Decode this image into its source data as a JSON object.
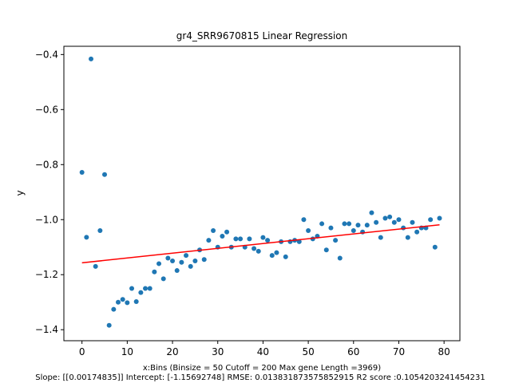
{
  "chart_data": {
    "type": "scatter",
    "title": "gr4_SRR9670815 Linear Regression",
    "xlabel": "x:Bins  (Binsize = 50 Cutoff = 200 Max gene Length =3969)",
    "ylabel": "y",
    "footer": "Slope: [[0.00174835]] Intercept: [-1.15692748] RMSE: 0.013831873575852915 R2 score :0.1054203241454231",
    "xlim": [
      -4,
      83.5
    ],
    "ylim": [
      -1.44,
      -0.37
    ],
    "xticks": [
      0,
      10,
      20,
      30,
      40,
      50,
      60,
      70,
      80
    ],
    "yticks": [
      -1.4,
      -1.2,
      -1.0,
      -0.8,
      -0.6,
      -0.4
    ],
    "ytick_labels": [
      "−1.4",
      "−1.2",
      "−1.0",
      "−0.8",
      "−0.6",
      "−0.4"
    ],
    "grid": false,
    "series": [
      {
        "type": "scatter",
        "color": "#1f77b4",
        "x": [
          0,
          1,
          2,
          3,
          4,
          5,
          6,
          7,
          8,
          9,
          10,
          11,
          12,
          13,
          14,
          15,
          16,
          17,
          18,
          19,
          20,
          21,
          22,
          23,
          24,
          25,
          26,
          27,
          28,
          29,
          30,
          31,
          32,
          33,
          34,
          35,
          36,
          37,
          38,
          39,
          40,
          41,
          42,
          43,
          44,
          45,
          46,
          47,
          48,
          49,
          50,
          51,
          52,
          53,
          54,
          55,
          56,
          57,
          58,
          59,
          60,
          61,
          62,
          63,
          64,
          65,
          66,
          67,
          68,
          69,
          70,
          71,
          72,
          73,
          74,
          75,
          76,
          77,
          78,
          79
        ],
        "y": [
          -0.828,
          -1.064,
          -0.416,
          -1.17,
          -1.04,
          -0.836,
          -1.384,
          -1.326,
          -1.3,
          -1.29,
          -1.302,
          -1.25,
          -1.298,
          -1.265,
          -1.25,
          -1.25,
          -1.19,
          -1.16,
          -1.215,
          -1.14,
          -1.15,
          -1.185,
          -1.155,
          -1.13,
          -1.17,
          -1.15,
          -1.11,
          -1.145,
          -1.075,
          -1.04,
          -1.1,
          -1.06,
          -1.045,
          -1.1,
          -1.07,
          -1.07,
          -1.1,
          -1.07,
          -1.105,
          -1.115,
          -1.065,
          -1.075,
          -1.13,
          -1.12,
          -1.08,
          -1.135,
          -1.08,
          -1.075,
          -1.08,
          -1.0,
          -1.04,
          -1.07,
          -1.06,
          -1.015,
          -1.11,
          -1.03,
          -1.075,
          -1.14,
          -1.015,
          -1.015,
          -1.04,
          -1.02,
          -1.045,
          -1.02,
          -0.975,
          -1.01,
          -1.065,
          -0.995,
          -0.99,
          -1.01,
          -1.0,
          -1.03,
          -1.065,
          -1.01,
          -1.045,
          -1.03,
          -1.03,
          -1.0,
          -1.1,
          -0.995
        ]
      },
      {
        "type": "line",
        "color": "#ff0000",
        "x": [
          0,
          79
        ],
        "y": [
          -1.15692748,
          -1.01880783
        ]
      }
    ]
  }
}
